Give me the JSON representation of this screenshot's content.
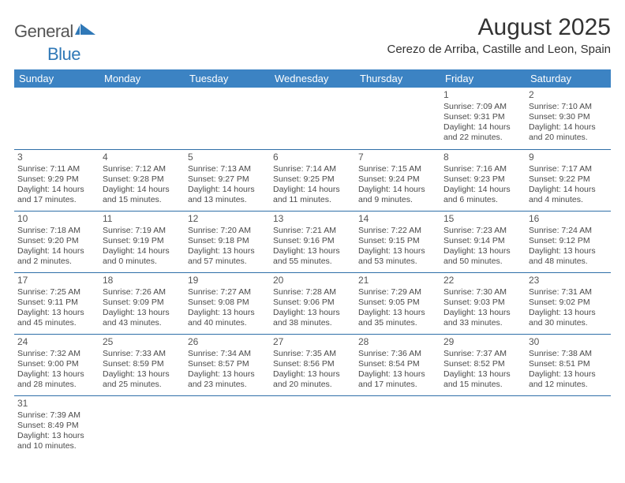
{
  "logo": {
    "general": "General",
    "blue": "Blue"
  },
  "title": "August 2025",
  "location": "Cerezo de Arriba, Castille and Leon, Spain",
  "colors": {
    "header_bg": "#3c83c3",
    "header_text": "#ffffff",
    "row_border": "#2f6fa8",
    "body_text": "#4a4a4a",
    "title_text": "#333333",
    "logo_blue": "#2f78b7",
    "logo_gray": "#555555"
  },
  "day_headers": [
    "Sunday",
    "Monday",
    "Tuesday",
    "Wednesday",
    "Thursday",
    "Friday",
    "Saturday"
  ],
  "weeks": [
    [
      null,
      null,
      null,
      null,
      null,
      {
        "n": "1",
        "sunrise": "Sunrise: 7:09 AM",
        "sunset": "Sunset: 9:31 PM",
        "day1": "Daylight: 14 hours",
        "day2": "and 22 minutes."
      },
      {
        "n": "2",
        "sunrise": "Sunrise: 7:10 AM",
        "sunset": "Sunset: 9:30 PM",
        "day1": "Daylight: 14 hours",
        "day2": "and 20 minutes."
      }
    ],
    [
      {
        "n": "3",
        "sunrise": "Sunrise: 7:11 AM",
        "sunset": "Sunset: 9:29 PM",
        "day1": "Daylight: 14 hours",
        "day2": "and 17 minutes."
      },
      {
        "n": "4",
        "sunrise": "Sunrise: 7:12 AM",
        "sunset": "Sunset: 9:28 PM",
        "day1": "Daylight: 14 hours",
        "day2": "and 15 minutes."
      },
      {
        "n": "5",
        "sunrise": "Sunrise: 7:13 AM",
        "sunset": "Sunset: 9:27 PM",
        "day1": "Daylight: 14 hours",
        "day2": "and 13 minutes."
      },
      {
        "n": "6",
        "sunrise": "Sunrise: 7:14 AM",
        "sunset": "Sunset: 9:25 PM",
        "day1": "Daylight: 14 hours",
        "day2": "and 11 minutes."
      },
      {
        "n": "7",
        "sunrise": "Sunrise: 7:15 AM",
        "sunset": "Sunset: 9:24 PM",
        "day1": "Daylight: 14 hours",
        "day2": "and 9 minutes."
      },
      {
        "n": "8",
        "sunrise": "Sunrise: 7:16 AM",
        "sunset": "Sunset: 9:23 PM",
        "day1": "Daylight: 14 hours",
        "day2": "and 6 minutes."
      },
      {
        "n": "9",
        "sunrise": "Sunrise: 7:17 AM",
        "sunset": "Sunset: 9:22 PM",
        "day1": "Daylight: 14 hours",
        "day2": "and 4 minutes."
      }
    ],
    [
      {
        "n": "10",
        "sunrise": "Sunrise: 7:18 AM",
        "sunset": "Sunset: 9:20 PM",
        "day1": "Daylight: 14 hours",
        "day2": "and 2 minutes."
      },
      {
        "n": "11",
        "sunrise": "Sunrise: 7:19 AM",
        "sunset": "Sunset: 9:19 PM",
        "day1": "Daylight: 14 hours",
        "day2": "and 0 minutes."
      },
      {
        "n": "12",
        "sunrise": "Sunrise: 7:20 AM",
        "sunset": "Sunset: 9:18 PM",
        "day1": "Daylight: 13 hours",
        "day2": "and 57 minutes."
      },
      {
        "n": "13",
        "sunrise": "Sunrise: 7:21 AM",
        "sunset": "Sunset: 9:16 PM",
        "day1": "Daylight: 13 hours",
        "day2": "and 55 minutes."
      },
      {
        "n": "14",
        "sunrise": "Sunrise: 7:22 AM",
        "sunset": "Sunset: 9:15 PM",
        "day1": "Daylight: 13 hours",
        "day2": "and 53 minutes."
      },
      {
        "n": "15",
        "sunrise": "Sunrise: 7:23 AM",
        "sunset": "Sunset: 9:14 PM",
        "day1": "Daylight: 13 hours",
        "day2": "and 50 minutes."
      },
      {
        "n": "16",
        "sunrise": "Sunrise: 7:24 AM",
        "sunset": "Sunset: 9:12 PM",
        "day1": "Daylight: 13 hours",
        "day2": "and 48 minutes."
      }
    ],
    [
      {
        "n": "17",
        "sunrise": "Sunrise: 7:25 AM",
        "sunset": "Sunset: 9:11 PM",
        "day1": "Daylight: 13 hours",
        "day2": "and 45 minutes."
      },
      {
        "n": "18",
        "sunrise": "Sunrise: 7:26 AM",
        "sunset": "Sunset: 9:09 PM",
        "day1": "Daylight: 13 hours",
        "day2": "and 43 minutes."
      },
      {
        "n": "19",
        "sunrise": "Sunrise: 7:27 AM",
        "sunset": "Sunset: 9:08 PM",
        "day1": "Daylight: 13 hours",
        "day2": "and 40 minutes."
      },
      {
        "n": "20",
        "sunrise": "Sunrise: 7:28 AM",
        "sunset": "Sunset: 9:06 PM",
        "day1": "Daylight: 13 hours",
        "day2": "and 38 minutes."
      },
      {
        "n": "21",
        "sunrise": "Sunrise: 7:29 AM",
        "sunset": "Sunset: 9:05 PM",
        "day1": "Daylight: 13 hours",
        "day2": "and 35 minutes."
      },
      {
        "n": "22",
        "sunrise": "Sunrise: 7:30 AM",
        "sunset": "Sunset: 9:03 PM",
        "day1": "Daylight: 13 hours",
        "day2": "and 33 minutes."
      },
      {
        "n": "23",
        "sunrise": "Sunrise: 7:31 AM",
        "sunset": "Sunset: 9:02 PM",
        "day1": "Daylight: 13 hours",
        "day2": "and 30 minutes."
      }
    ],
    [
      {
        "n": "24",
        "sunrise": "Sunrise: 7:32 AM",
        "sunset": "Sunset: 9:00 PM",
        "day1": "Daylight: 13 hours",
        "day2": "and 28 minutes."
      },
      {
        "n": "25",
        "sunrise": "Sunrise: 7:33 AM",
        "sunset": "Sunset: 8:59 PM",
        "day1": "Daylight: 13 hours",
        "day2": "and 25 minutes."
      },
      {
        "n": "26",
        "sunrise": "Sunrise: 7:34 AM",
        "sunset": "Sunset: 8:57 PM",
        "day1": "Daylight: 13 hours",
        "day2": "and 23 minutes."
      },
      {
        "n": "27",
        "sunrise": "Sunrise: 7:35 AM",
        "sunset": "Sunset: 8:56 PM",
        "day1": "Daylight: 13 hours",
        "day2": "and 20 minutes."
      },
      {
        "n": "28",
        "sunrise": "Sunrise: 7:36 AM",
        "sunset": "Sunset: 8:54 PM",
        "day1": "Daylight: 13 hours",
        "day2": "and 17 minutes."
      },
      {
        "n": "29",
        "sunrise": "Sunrise: 7:37 AM",
        "sunset": "Sunset: 8:52 PM",
        "day1": "Daylight: 13 hours",
        "day2": "and 15 minutes."
      },
      {
        "n": "30",
        "sunrise": "Sunrise: 7:38 AM",
        "sunset": "Sunset: 8:51 PM",
        "day1": "Daylight: 13 hours",
        "day2": "and 12 minutes."
      }
    ],
    [
      {
        "n": "31",
        "sunrise": "Sunrise: 7:39 AM",
        "sunset": "Sunset: 8:49 PM",
        "day1": "Daylight: 13 hours",
        "day2": "and 10 minutes."
      },
      null,
      null,
      null,
      null,
      null,
      null
    ]
  ]
}
